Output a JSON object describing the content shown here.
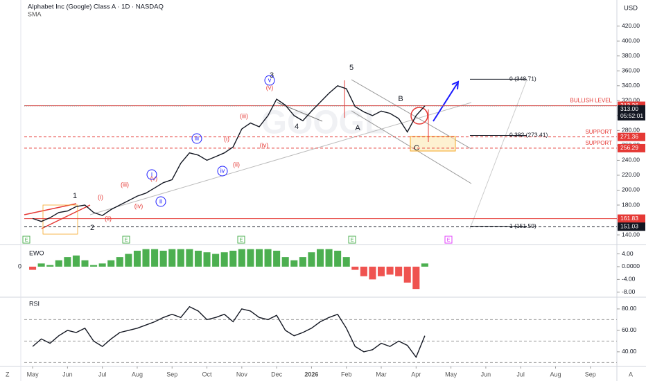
{
  "header": {
    "title": "Alphabet Inc (Google) Class A · 1D · NASDAQ",
    "indicator": "SMA",
    "currency": "USD",
    "left_mark": "Z",
    "right_mark": "A",
    "watermark": "GOOGL"
  },
  "chart_data": [
    {
      "type": "line",
      "color": "#131722",
      "x": [
        0,
        0.25,
        0.5,
        0.75,
        1,
        1.25,
        1.5,
        1.75,
        2,
        2.25,
        2.5,
        2.75,
        3,
        3.25,
        3.5,
        3.75,
        4,
        4.25,
        4.5,
        4.75,
        5,
        5.25,
        5.5,
        5.75,
        6,
        6.25,
        6.5,
        6.75,
        7,
        7.25,
        7.5,
        7.75,
        8,
        8.25,
        8.5,
        8.75,
        9,
        9.25,
        9.5,
        9.75,
        10,
        10.25,
        10.5,
        10.75,
        11,
        11.25
      ],
      "values": [
        162,
        158,
        163,
        170,
        172,
        178,
        180,
        170,
        166,
        174,
        180,
        186,
        192,
        196,
        203,
        210,
        214,
        236,
        250,
        247,
        240,
        245,
        250,
        258,
        282,
        290,
        285,
        300,
        322,
        314,
        300,
        293,
        306,
        318,
        330,
        340,
        336,
        312,
        305,
        300,
        306,
        303,
        296,
        278,
        300,
        313
      ],
      "xlim": [
        -0.24,
        16.76
      ],
      "xticks": [
        {
          "value": 0,
          "label": "May"
        },
        {
          "value": 1,
          "label": "Jun"
        },
        {
          "value": 2,
          "label": "Jul"
        },
        {
          "value": 3,
          "label": "Aug"
        },
        {
          "value": 4,
          "label": "Sep"
        },
        {
          "value": 5,
          "label": "Oct"
        },
        {
          "value": 6,
          "label": "Nov"
        },
        {
          "value": 7,
          "label": "Dec"
        },
        {
          "value": 8,
          "label": "2026"
        },
        {
          "value": 9,
          "label": "Feb"
        },
        {
          "value": 10,
          "label": "Mar"
        },
        {
          "value": 11,
          "label": "Apr"
        },
        {
          "value": 12,
          "label": "May"
        },
        {
          "value": 13,
          "label": "Jun"
        },
        {
          "value": 14,
          "label": "Jul"
        },
        {
          "value": 15,
          "label": "Aug"
        },
        {
          "value": 16,
          "label": "Sep"
        }
      ],
      "ylim": [
        128,
        455
      ],
      "yticks": [
        {
          "value": 140,
          "label": "140.00"
        },
        {
          "value": 160,
          "label": "160.00"
        },
        {
          "value": 180,
          "label": "180.00"
        },
        {
          "value": 200,
          "label": "200.00"
        },
        {
          "value": 220,
          "label": "220.00"
        },
        {
          "value": 240,
          "label": "240.00"
        },
        {
          "value": 260,
          "label": "260.00"
        },
        {
          "value": 280,
          "label": "280.00"
        },
        {
          "value": 300,
          "label": "300.00"
        },
        {
          "value": 320,
          "label": "320.00"
        },
        {
          "value": 340,
          "label": "340.00"
        },
        {
          "value": 360,
          "label": "360.00"
        },
        {
          "value": 380,
          "label": "380.00"
        },
        {
          "value": 400,
          "label": "400.00"
        },
        {
          "value": 420,
          "label": "420.00"
        }
      ],
      "levels": [
        {
          "value": 313.26,
          "name": "BULLISH LEVEL",
          "color": "#e53935",
          "style": "solid"
        },
        {
          "value": 271.36,
          "name": "SUPPORT",
          "color": "#e53935",
          "style": "dashed"
        },
        {
          "value": 256.29,
          "name": "SUPPORT",
          "color": "#e53935",
          "style": "dashed"
        },
        {
          "value": 161.83,
          "color": "#e53935",
          "style": "solid"
        },
        {
          "value": 151.03,
          "color": "#131722",
          "style": "dashed"
        }
      ],
      "last": {
        "value": 313,
        "label": "313.00",
        "countdown": "05:52:01"
      },
      "fib": [
        {
          "value": 348.71,
          "label": "0 (348.71)"
        },
        {
          "value": 273.41,
          "label": "0.382 (273.41)"
        },
        {
          "value": 151.59,
          "label": "1 (151.59)"
        }
      ],
      "wave_labels": [
        "1",
        "2",
        "3",
        "4",
        "5",
        "A",
        "B",
        "C",
        "(i)",
        "(ii)",
        "(iii)",
        "(iv)",
        "(v)",
        "(i)",
        "(ii)",
        "(iii)",
        "(iv)",
        "(v)",
        "i",
        "ii",
        "iii",
        "iv",
        "v"
      ],
      "earnings": [
        "E",
        "E",
        "E",
        "E",
        "E"
      ]
    },
    {
      "type": "bar",
      "title": "EWO",
      "zero_label": "0",
      "color_up": "#4caf50",
      "color_down": "#ef5350",
      "values": [
        -1,
        1,
        0.5,
        2,
        3,
        3.5,
        2,
        0.5,
        1,
        2,
        3,
        4,
        5,
        5.5,
        5.5,
        5,
        5.5,
        5.5,
        5.5,
        5,
        4.5,
        4,
        4.5,
        5,
        5.5,
        5.5,
        5.5,
        5.5,
        5,
        3,
        2,
        3,
        4.5,
        5.5,
        5.5,
        5,
        3,
        -1,
        -3,
        -4,
        -3,
        -2.5,
        -3,
        -5,
        -7,
        1
      ],
      "ylim": [
        -9.35,
        6.5
      ],
      "yticks": [
        {
          "value": 4,
          "label": "4.00"
        },
        {
          "value": 0,
          "label": "0.0000"
        },
        {
          "value": -4,
          "label": "-4.00"
        },
        {
          "value": -8,
          "label": "-8.00"
        }
      ]
    },
    {
      "type": "line",
      "title": "RSI",
      "color": "#131722",
      "values": [
        45,
        52,
        48,
        55,
        60,
        58,
        62,
        50,
        45,
        52,
        58,
        60,
        62,
        65,
        68,
        72,
        75,
        72,
        82,
        78,
        70,
        72,
        75,
        68,
        80,
        78,
        72,
        70,
        74,
        60,
        55,
        58,
        62,
        68,
        72,
        75,
        62,
        45,
        40,
        42,
        48,
        45,
        50,
        46,
        35,
        55
      ],
      "ylim": [
        27,
        90.3
      ],
      "yticks": [
        {
          "value": 40,
          "label": "40.00"
        },
        {
          "value": 60,
          "label": "60.00"
        },
        {
          "value": 80,
          "label": "80.00"
        }
      ],
      "bands": [
        70,
        50,
        30
      ]
    }
  ]
}
